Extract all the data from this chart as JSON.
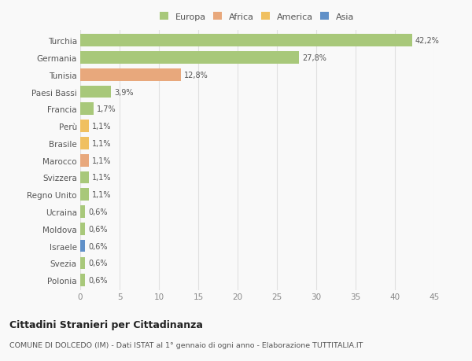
{
  "categories": [
    "Turchia",
    "Germania",
    "Tunisia",
    "Paesi Bassi",
    "Francia",
    "Perù",
    "Brasile",
    "Marocco",
    "Svizzera",
    "Regno Unito",
    "Ucraina",
    "Moldova",
    "Israele",
    "Svezia",
    "Polonia"
  ],
  "values": [
    42.2,
    27.8,
    12.8,
    3.9,
    1.7,
    1.1,
    1.1,
    1.1,
    1.1,
    1.1,
    0.6,
    0.6,
    0.6,
    0.6,
    0.6
  ],
  "labels": [
    "42,2%",
    "27,8%",
    "12,8%",
    "3,9%",
    "1,7%",
    "1,1%",
    "1,1%",
    "1,1%",
    "1,1%",
    "1,1%",
    "0,6%",
    "0,6%",
    "0,6%",
    "0,6%",
    "0,6%"
  ],
  "colors": [
    "#a8c87a",
    "#a8c87a",
    "#e8a87c",
    "#a8c87a",
    "#a8c87a",
    "#f0c060",
    "#f0c060",
    "#e8a87c",
    "#a8c87a",
    "#a8c87a",
    "#a8c87a",
    "#a8c87a",
    "#6090c8",
    "#a8c87a",
    "#a8c87a"
  ],
  "legend_labels": [
    "Europa",
    "Africa",
    "America",
    "Asia"
  ],
  "legend_colors": [
    "#a8c87a",
    "#e8a87c",
    "#f0c060",
    "#6090c8"
  ],
  "title": "Cittadini Stranieri per Cittadinanza",
  "subtitle": "COMUNE DI DOLCEDO (IM) - Dati ISTAT al 1° gennaio di ogni anno - Elaborazione TUTTITALIA.IT",
  "xlim": [
    0,
    45
  ],
  "xticks": [
    0,
    5,
    10,
    15,
    20,
    25,
    30,
    35,
    40,
    45
  ],
  "background_color": "#f9f9f9",
  "grid_color": "#e0e0e0",
  "bar_height": 0.72
}
